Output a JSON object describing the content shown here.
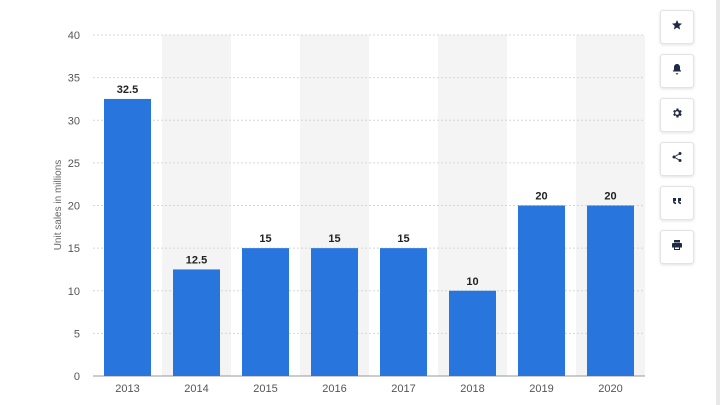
{
  "chart_data": {
    "type": "bar",
    "categories": [
      "2013",
      "2014",
      "2015",
      "2016",
      "2017",
      "2018",
      "2019",
      "2020"
    ],
    "values": [
      32.5,
      12.5,
      15,
      15,
      15,
      10,
      20,
      20
    ],
    "value_labels": [
      "32.5",
      "12.5",
      "15",
      "15",
      "15",
      "10",
      "20",
      "20"
    ],
    "title": "",
    "xlabel": "",
    "ylabel": "Unit sales in millions",
    "ylim": [
      0,
      40
    ],
    "yticks": [
      "0",
      "5",
      "10",
      "15",
      "20",
      "25",
      "30",
      "35",
      "40"
    ],
    "grid": "horizontal dashed",
    "alternating_band_color": "#f4f4f4",
    "bar_color": "#2876dd"
  },
  "toolbar": {
    "buttons": [
      {
        "icon": "star-icon"
      },
      {
        "icon": "bell-icon"
      },
      {
        "icon": "gear-icon"
      },
      {
        "icon": "share-icon"
      },
      {
        "icon": "quote-icon"
      },
      {
        "icon": "print-icon"
      }
    ]
  }
}
